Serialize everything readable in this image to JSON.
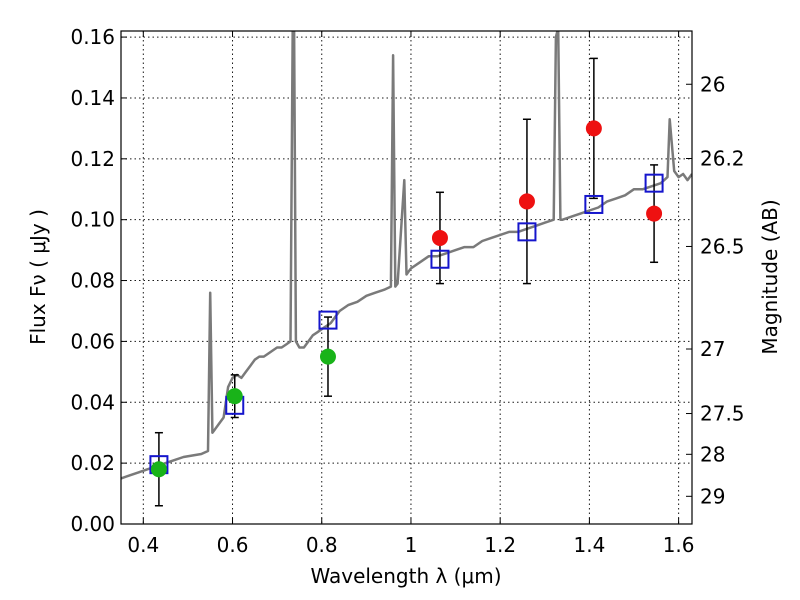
{
  "chart_data": {
    "type": "scatter",
    "title": "",
    "xlabel": "Wavelength  λ (μm)",
    "ylabel": "Flux  Fν  ( μJy )",
    "y2label": "Magnitude (AB)",
    "xlim": [
      0.35,
      1.63
    ],
    "ylim": [
      0.0,
      0.162
    ],
    "grid": true,
    "x_ticks": [
      0.4,
      0.6,
      0.8,
      1.0,
      1.2,
      1.4,
      1.6
    ],
    "x_tick_labels": [
      "0.4",
      "0.6",
      "0.8",
      "1",
      "1.2",
      "1.4",
      "1.6"
    ],
    "y_ticks": [
      0.0,
      0.02,
      0.04,
      0.06,
      0.08,
      0.1,
      0.12,
      0.14,
      0.16
    ],
    "y_tick_labels": [
      "0.00",
      "0.02",
      "0.04",
      "0.06",
      "0.08",
      "0.10",
      "0.12",
      "0.14",
      "0.16"
    ],
    "y2_ticks": [
      {
        "label": "26",
        "flux": 0.1445
      },
      {
        "label": "26.2",
        "flux": 0.1201
      },
      {
        "label": "26.5",
        "flux": 0.0912
      },
      {
        "label": "27",
        "flux": 0.0575
      },
      {
        "label": "27.5",
        "flux": 0.0363
      },
      {
        "label": "28",
        "flux": 0.0229
      },
      {
        "label": "29",
        "flux": 0.0091
      }
    ],
    "colors": {
      "model": "#7a7a7a",
      "observed_green": "#19b319",
      "observed_red": "#ee1111",
      "model_photometry": "#1515cc",
      "errorbar": "#000000"
    },
    "series": [
      {
        "kind": "model_spectrum",
        "x": [
          0.35,
          0.37,
          0.39,
          0.41,
          0.43,
          0.45,
          0.47,
          0.49,
          0.51,
          0.53,
          0.545,
          0.55,
          0.555,
          0.56,
          0.57,
          0.58,
          0.59,
          0.6,
          0.61,
          0.62,
          0.63,
          0.64,
          0.65,
          0.66,
          0.67,
          0.68,
          0.69,
          0.7,
          0.71,
          0.72,
          0.73,
          0.735,
          0.738,
          0.742,
          0.75,
          0.76,
          0.77,
          0.78,
          0.79,
          0.8,
          0.82,
          0.84,
          0.86,
          0.88,
          0.9,
          0.92,
          0.94,
          0.955,
          0.96,
          0.965,
          0.97,
          0.985,
          0.99,
          0.995,
          1.0,
          1.02,
          1.04,
          1.06,
          1.08,
          1.1,
          1.12,
          1.14,
          1.16,
          1.18,
          1.2,
          1.22,
          1.24,
          1.26,
          1.28,
          1.3,
          1.32,
          1.325,
          1.33,
          1.335,
          1.34,
          1.36,
          1.38,
          1.4,
          1.42,
          1.44,
          1.46,
          1.48,
          1.5,
          1.52,
          1.54,
          1.56,
          1.575,
          1.58,
          1.59,
          1.6,
          1.61,
          1.62,
          1.63
        ],
        "y": [
          0.015,
          0.016,
          0.017,
          0.018,
          0.019,
          0.02,
          0.021,
          0.022,
          0.0225,
          0.023,
          0.024,
          0.076,
          0.03,
          0.031,
          0.033,
          0.035,
          0.045,
          0.048,
          0.049,
          0.048,
          0.05,
          0.052,
          0.054,
          0.055,
          0.055,
          0.056,
          0.057,
          0.058,
          0.058,
          0.059,
          0.06,
          0.163,
          0.163,
          0.06,
          0.058,
          0.058,
          0.06,
          0.062,
          0.063,
          0.064,
          0.066,
          0.07,
          0.072,
          0.073,
          0.075,
          0.076,
          0.077,
          0.078,
          0.154,
          0.078,
          0.079,
          0.113,
          0.082,
          0.083,
          0.084,
          0.086,
          0.088,
          0.088,
          0.089,
          0.09,
          0.091,
          0.091,
          0.093,
          0.094,
          0.095,
          0.096,
          0.096,
          0.097,
          0.098,
          0.099,
          0.1,
          0.16,
          0.163,
          0.1,
          0.1,
          0.101,
          0.102,
          0.103,
          0.104,
          0.106,
          0.107,
          0.108,
          0.11,
          0.11,
          0.111,
          0.112,
          0.114,
          0.133,
          0.116,
          0.114,
          0.115,
          0.113,
          0.115
        ]
      },
      {
        "kind": "observed",
        "x": [
          0.435,
          0.605,
          0.814
        ],
        "y": [
          0.018,
          0.042,
          0.055
        ],
        "yerr": [
          0.012,
          0.007,
          0.013
        ],
        "color_key": "observed_green"
      },
      {
        "kind": "observed",
        "x": [
          1.065,
          1.26,
          1.41,
          1.545
        ],
        "y": [
          0.094,
          0.106,
          0.13,
          0.102
        ],
        "yerr": [
          0.015,
          0.027,
          0.023,
          0.016
        ],
        "color_key": "observed_red"
      },
      {
        "kind": "model_photometry",
        "x": [
          0.435,
          0.605,
          0.814,
          1.065,
          1.26,
          1.41,
          1.545
        ],
        "y": [
          0.0195,
          0.039,
          0.067,
          0.087,
          0.096,
          0.105,
          0.112
        ],
        "color_key": "model_photometry"
      }
    ]
  }
}
